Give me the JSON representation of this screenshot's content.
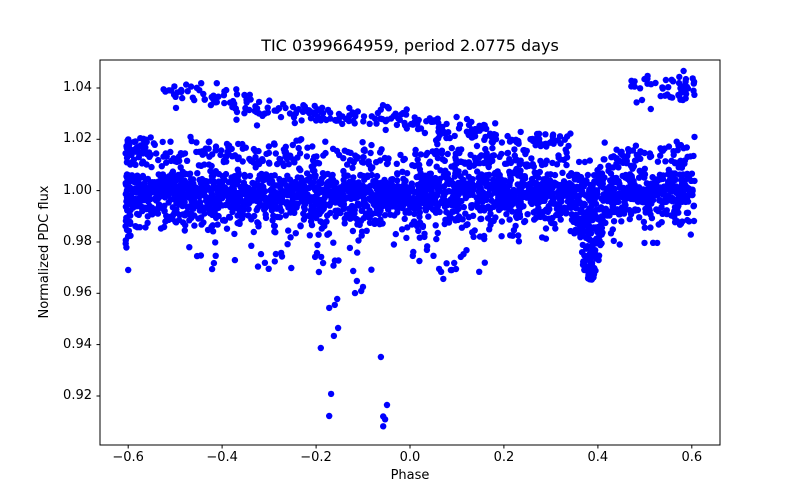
{
  "figure": {
    "title": "TIC 0399664959, period 2.0775 days",
    "xlabel": "Phase",
    "ylabel": "Normalized PDC flux"
  },
  "chart_data": {
    "type": "scatter",
    "title": "TIC 0399664959, period 2.0775 days",
    "xlabel": "Phase",
    "ylabel": "Normalized PDC flux",
    "legend": null,
    "grid": false,
    "background": "#ffffff",
    "marker_color": "#0000ff",
    "marker_radius_px": 3.2,
    "axis_color": "#000000",
    "xlim": [
      -0.66,
      0.66
    ],
    "ylim": [
      0.9009,
      1.0509
    ],
    "xticks": [
      -0.6,
      -0.4,
      -0.2,
      0.0,
      0.2,
      0.4,
      0.6
    ],
    "xtick_labels": [
      "−0.6",
      "−0.4",
      "−0.2",
      "0.0",
      "0.2",
      "0.4",
      "0.6"
    ],
    "yticks": [
      1.04,
      1.02,
      1.0,
      0.98,
      0.96,
      0.94,
      0.92
    ],
    "ytick_labels": [
      "1.04",
      "1.02",
      "1.00",
      "0.98",
      "0.96",
      "0.94",
      "0.92"
    ],
    "seed": 7,
    "series": [
      {
        "name": "main-band-core",
        "n": 1250,
        "p": [
          -0.606,
          0.606
        ],
        "f": [
          1.0,
          1.0
        ],
        "s": 0.0036,
        "clip": [
          0.9895,
          1.0068
        ]
      },
      {
        "name": "main-band-lower",
        "n": 700,
        "p": [
          -0.606,
          0.606
        ],
        "f": [
          0.9938,
          0.9938
        ],
        "s": 0.0045,
        "clip": [
          0.9825,
          1.0045
        ]
      },
      {
        "name": "main-band-soft",
        "n": 260,
        "p": [
          -0.606,
          0.606
        ],
        "f": [
          0.996,
          0.996
        ],
        "s": 0.0068,
        "clip": [
          0.979,
          1.008
        ]
      },
      {
        "name": "between-band-scatter",
        "n": 130,
        "p": [
          -0.606,
          0.606
        ],
        "f": [
          1.0085,
          1.0085
        ],
        "u": 0.0038
      },
      {
        "name": "middle-band",
        "n": 240,
        "p": [
          -0.606,
          0.335
        ],
        "f": [
          1.016,
          1.0115
        ],
        "s": 0.0026
      },
      {
        "name": "middle-band-left-clump",
        "n": 45,
        "p": [
          -0.606,
          -0.54
        ],
        "f": [
          1.0162,
          1.0162
        ],
        "s": 0.003
      },
      {
        "name": "middle-band-right",
        "n": 60,
        "p": [
          0.41,
          0.606
        ],
        "f": [
          1.013,
          1.014
        ],
        "s": 0.0028
      },
      {
        "name": "top-band-declining-1",
        "n": 70,
        "p": [
          -0.525,
          -0.3
        ],
        "f": [
          1.0398,
          1.032
        ],
        "s": 0.0028
      },
      {
        "name": "top-band-declining-2",
        "n": 95,
        "p": [
          -0.3,
          0.0
        ],
        "f": [
          1.032,
          1.0268
        ],
        "s": 0.0022
      },
      {
        "name": "top-band-declining-3",
        "n": 105,
        "p": [
          0.0,
          0.345
        ],
        "f": [
          1.0268,
          1.0178
        ],
        "s": 0.0022
      },
      {
        "name": "top-right-cluster",
        "n": 50,
        "p": [
          0.468,
          0.606
        ],
        "f": [
          1.04,
          1.0388
        ],
        "s": 0.0033
      },
      {
        "name": "low-scatter-left-half",
        "n": 55,
        "p": [
          -0.47,
          0.16
        ],
        "f": [
          0.978,
          0.978
        ],
        "u": 0.01
      },
      {
        "name": "low-scatter-right-half",
        "n": 14,
        "p": [
          0.16,
          0.6
        ],
        "f": [
          0.9822,
          0.9822
        ],
        "u": 0.0038
      },
      {
        "name": "left-edge-tail",
        "n": 10,
        "p": [
          -0.606,
          -0.594
        ],
        "f": [
          0.983,
          0.983
        ],
        "u": 0.0058
      }
    ],
    "eclipse_dip": {
      "name": "secondary-eclipse-dip",
      "n": 115,
      "center": 0.384,
      "half_width": 0.028,
      "flux_min": 0.9648,
      "flux_top": 0.993,
      "shoulder": 0.985
    },
    "outlier_points": [
      [
        -0.198,
        0.9757
      ],
      [
        -0.202,
        0.9742
      ],
      [
        -0.189,
        0.9742
      ],
      [
        -0.185,
        0.9718
      ],
      [
        -0.194,
        0.9683
      ],
      [
        -0.128,
        0.9777
      ],
      [
        -0.121,
        0.9687
      ],
      [
        -0.113,
        0.9648
      ],
      [
        -0.104,
        0.9609
      ],
      [
        -0.117,
        0.9601
      ],
      [
        -0.1,
        0.9625
      ],
      [
        -0.155,
        0.9578
      ],
      [
        -0.16,
        0.9555
      ],
      [
        -0.172,
        0.9543
      ],
      [
        -0.153,
        0.9465
      ],
      [
        -0.162,
        0.9434
      ],
      [
        -0.19,
        0.9387
      ],
      [
        -0.062,
        0.9352
      ],
      [
        -0.168,
        0.9208
      ],
      [
        -0.172,
        0.9122
      ],
      [
        -0.049,
        0.9165
      ],
      [
        -0.057,
        0.912
      ],
      [
        -0.053,
        0.9109
      ],
      [
        -0.057,
        0.9082
      ],
      [
        0.007,
        0.9761
      ],
      [
        0.02,
        0.9726
      ],
      [
        0.036,
        0.9769
      ],
      [
        0.05,
        0.9746
      ],
      [
        0.062,
        0.9695
      ],
      [
        0.089,
        0.9691
      ],
      [
        0.071,
        0.9656
      ],
      [
        0.094,
        0.9718
      ],
      [
        -0.6,
        0.9691
      ]
    ]
  }
}
